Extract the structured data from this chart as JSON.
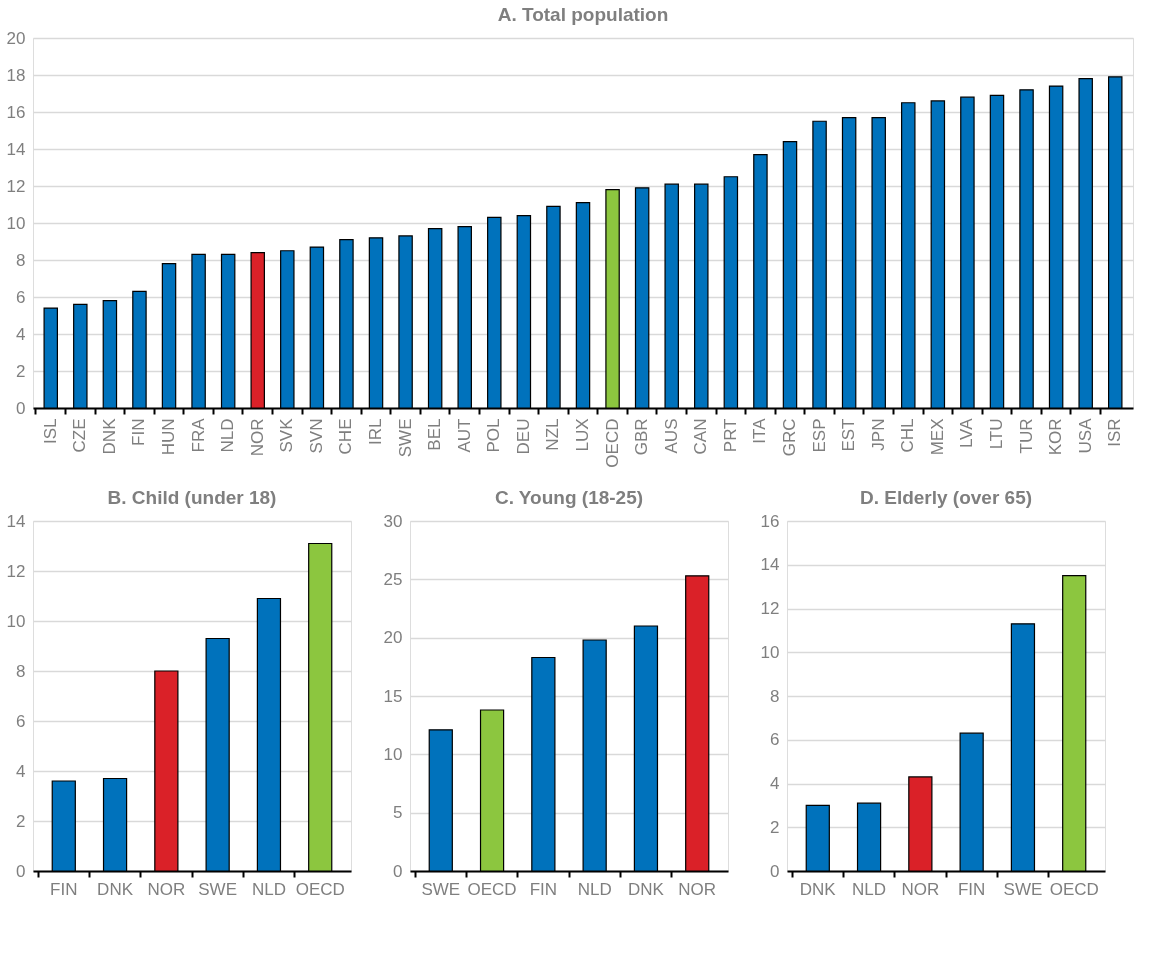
{
  "chart_data": [
    {
      "type": "bar",
      "title": "A. Total population",
      "categories": [
        "ISL",
        "CZE",
        "DNK",
        "FIN",
        "HUN",
        "FRA",
        "NLD",
        "NOR",
        "SVK",
        "SVN",
        "CHE",
        "IRL",
        "SWE",
        "BEL",
        "AUT",
        "POL",
        "DEU",
        "NZL",
        "LUX",
        "OECD",
        "GBR",
        "AUS",
        "CAN",
        "PRT",
        "ITA",
        "GRC",
        "ESP",
        "EST",
        "JPN",
        "CHL",
        "MEX",
        "LVA",
        "LTU",
        "TUR",
        "KOR",
        "USA",
        "ISR"
      ],
      "values": [
        5.4,
        5.6,
        5.8,
        6.3,
        7.8,
        8.3,
        8.3,
        8.4,
        8.5,
        8.7,
        9.1,
        9.2,
        9.3,
        9.7,
        9.8,
        10.3,
        10.4,
        10.9,
        11.1,
        11.8,
        11.9,
        12.1,
        12.1,
        12.5,
        13.7,
        14.4,
        15.5,
        15.7,
        15.7,
        16.5,
        16.6,
        16.8,
        16.9,
        17.2,
        17.4,
        17.8,
        17.9
      ],
      "colors": [
        "#0072bc",
        "#0072bc",
        "#0072bc",
        "#0072bc",
        "#0072bc",
        "#0072bc",
        "#0072bc",
        "#da2128",
        "#0072bc",
        "#0072bc",
        "#0072bc",
        "#0072bc",
        "#0072bc",
        "#0072bc",
        "#0072bc",
        "#0072bc",
        "#0072bc",
        "#0072bc",
        "#0072bc",
        "#8cc63f",
        "#0072bc",
        "#0072bc",
        "#0072bc",
        "#0072bc",
        "#0072bc",
        "#0072bc",
        "#0072bc",
        "#0072bc",
        "#0072bc",
        "#0072bc",
        "#0072bc",
        "#0072bc",
        "#0072bc",
        "#0072bc",
        "#0072bc",
        "#0072bc",
        "#0072bc"
      ],
      "ylim": [
        0,
        20
      ],
      "yticks": [
        0,
        2,
        4,
        6,
        8,
        10,
        12,
        14,
        16,
        18,
        20
      ],
      "grid": "y"
    },
    {
      "type": "bar",
      "title": "B. Child (under 18)",
      "categories": [
        "FIN",
        "DNK",
        "NOR",
        "SWE",
        "NLD",
        "OECD"
      ],
      "values": [
        3.6,
        3.7,
        8.0,
        9.3,
        10.9,
        13.1
      ],
      "colors": [
        "#0072bc",
        "#0072bc",
        "#da2128",
        "#0072bc",
        "#0072bc",
        "#8cc63f"
      ],
      "ylim": [
        0,
        14
      ],
      "yticks": [
        0,
        2,
        4,
        6,
        8,
        10,
        12,
        14
      ],
      "grid": "y"
    },
    {
      "type": "bar",
      "title": "C. Young (18-25)",
      "categories": [
        "SWE",
        "OECD",
        "FIN",
        "NLD",
        "DNK",
        "NOR"
      ],
      "values": [
        12.1,
        13.8,
        18.3,
        19.8,
        21.0,
        25.3
      ],
      "colors": [
        "#0072bc",
        "#8cc63f",
        "#0072bc",
        "#0072bc",
        "#0072bc",
        "#da2128"
      ],
      "ylim": [
        0,
        30
      ],
      "yticks": [
        0,
        5,
        10,
        15,
        20,
        25,
        30
      ],
      "grid": "y"
    },
    {
      "type": "bar",
      "title": "D. Elderly (over 65)",
      "categories": [
        "DNK",
        "NLD",
        "NOR",
        "FIN",
        "SWE",
        "OECD"
      ],
      "values": [
        3.0,
        3.1,
        4.3,
        6.3,
        11.3,
        13.5
      ],
      "colors": [
        "#0072bc",
        "#0072bc",
        "#da2128",
        "#0072bc",
        "#0072bc",
        "#8cc63f"
      ],
      "ylim": [
        0,
        16
      ],
      "yticks": [
        0,
        2,
        4,
        6,
        8,
        10,
        12,
        14,
        16
      ],
      "grid": "y"
    }
  ]
}
